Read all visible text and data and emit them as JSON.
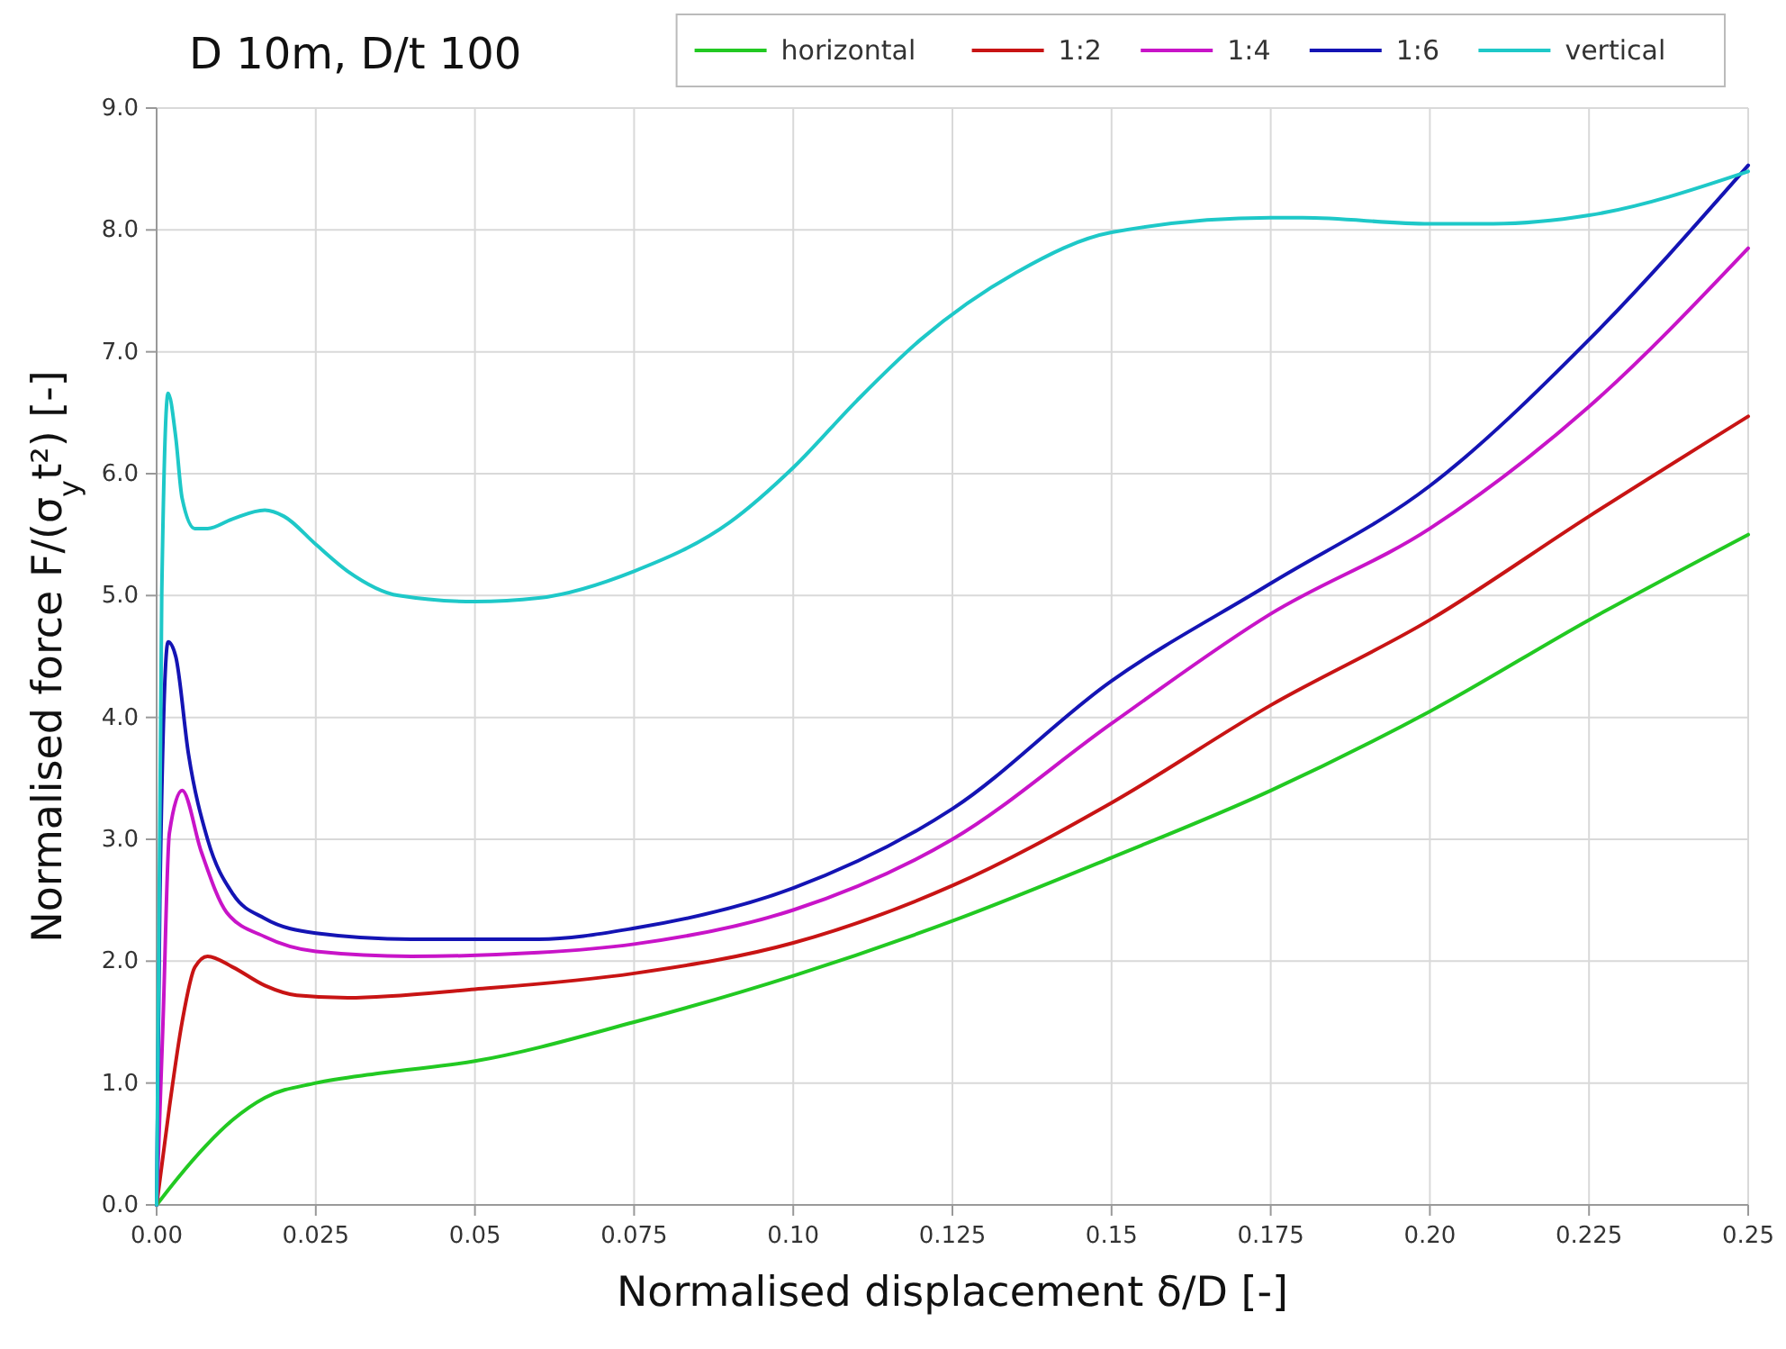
{
  "chart_data": {
    "type": "line",
    "title": "D 10m,  D/t 100",
    "xlabel": "Normalised displacement   δ/D   [-]",
    "ylabel": "Normalised force   F/(σ$_{y}$t²)    [-]",
    "xlim": [
      0,
      0.25
    ],
    "ylim": [
      0,
      9
    ],
    "xticks": [
      {
        "value": 0,
        "label": "0.00"
      },
      0.025,
      0.05,
      0.075,
      {
        "value": 0.1,
        "label": "0.10"
      },
      0.125,
      0.15,
      0.175,
      {
        "value": 0.2,
        "label": "0.20"
      },
      0.225,
      0.25
    ],
    "yticks": [
      {
        "value": 0,
        "label": "0.0"
      },
      {
        "value": 1,
        "label": "1.0"
      },
      {
        "value": 2,
        "label": "2.0"
      },
      {
        "value": 3,
        "label": "3.0"
      },
      {
        "value": 4,
        "label": "4.0"
      },
      {
        "value": 5,
        "label": "5.0"
      },
      {
        "value": 6,
        "label": "6.0"
      },
      {
        "value": 7,
        "label": "7.0"
      },
      {
        "value": 8,
        "label": "8.0"
      },
      {
        "value": 9,
        "label": "9.0"
      }
    ],
    "grid": true,
    "legend": "top",
    "marker": "none",
    "line_style": "solid",
    "series": [
      {
        "name": "horizontal",
        "color": "#22c922",
        "x": [
          0,
          0.003,
          0.008,
          0.012,
          0.017,
          0.025,
          0.035,
          0.05,
          0.075,
          0.1,
          0.125,
          0.15,
          0.175,
          0.2,
          0.225,
          0.25
        ],
        "values": [
          0,
          0.2,
          0.5,
          0.7,
          0.88,
          1.0,
          1.08,
          1.18,
          1.5,
          1.88,
          2.33,
          2.85,
          3.4,
          4.05,
          4.8,
          5.5
        ]
      },
      {
        "name": "1:2",
        "color": "#c81414",
        "x": [
          0,
          0.002,
          0.004,
          0.006,
          0.008,
          0.012,
          0.017,
          0.022,
          0.03,
          0.05,
          0.075,
          0.1,
          0.125,
          0.15,
          0.175,
          0.2,
          0.225,
          0.25
        ],
        "values": [
          0,
          0.8,
          1.5,
          1.95,
          2.04,
          1.95,
          1.8,
          1.72,
          1.7,
          1.77,
          1.9,
          2.15,
          2.62,
          3.3,
          4.1,
          4.8,
          5.65,
          6.47
        ]
      },
      {
        "name": "1:4",
        "color": "#c814c8",
        "x": [
          0,
          0.001,
          0.002,
          0.004,
          0.007,
          0.011,
          0.017,
          0.025,
          0.04,
          0.06,
          0.075,
          0.1,
          0.125,
          0.15,
          0.175,
          0.2,
          0.225,
          0.25
        ],
        "values": [
          0,
          1.5,
          3.05,
          3.4,
          2.9,
          2.4,
          2.2,
          2.08,
          2.04,
          2.07,
          2.14,
          2.42,
          3.0,
          3.95,
          4.85,
          5.55,
          6.55,
          7.85
        ]
      },
      {
        "name": "1:6",
        "color": "#1414b4",
        "x": [
          0,
          0.0005,
          0.0018,
          0.003,
          0.005,
          0.008,
          0.012,
          0.017,
          0.025,
          0.04,
          0.06,
          0.075,
          0.1,
          0.125,
          0.15,
          0.175,
          0.2,
          0.225,
          0.25
        ],
        "values": [
          0,
          2.5,
          4.62,
          4.5,
          3.7,
          3.0,
          2.55,
          2.35,
          2.23,
          2.18,
          2.18,
          2.27,
          2.6,
          3.25,
          4.3,
          5.1,
          5.9,
          7.1,
          8.53
        ]
      },
      {
        "name": "vertical",
        "color": "#1ec8c8",
        "x": [
          0,
          0.0008,
          0.0018,
          0.003,
          0.004,
          0.006,
          0.008,
          0.012,
          0.017,
          0.02,
          0.025,
          0.03,
          0.038,
          0.05,
          0.06,
          0.075,
          0.09,
          0.1,
          0.11,
          0.12,
          0.135,
          0.15,
          0.175,
          0.18,
          0.2,
          0.21,
          0.225,
          0.25
        ],
        "values": [
          0,
          5.0,
          6.66,
          6.3,
          5.8,
          5.55,
          5.55,
          5.63,
          5.7,
          5.65,
          5.42,
          5.2,
          5.0,
          4.95,
          4.98,
          5.2,
          5.6,
          6.05,
          6.6,
          7.1,
          7.65,
          7.98,
          8.1,
          8.1,
          8.05,
          8.05,
          8.12,
          8.48
        ]
      }
    ]
  }
}
